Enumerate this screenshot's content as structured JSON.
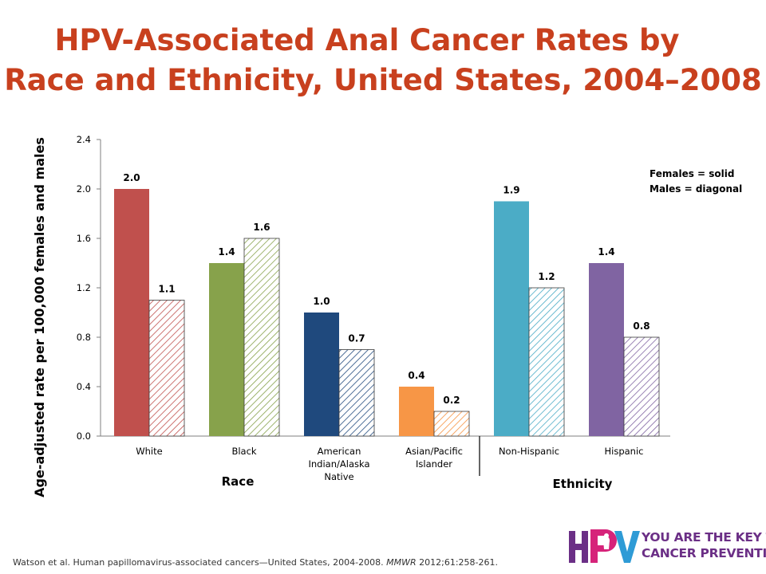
{
  "title_line1": "HPV-Associated Anal Cancer Rates by",
  "title_line2": "Race and Ethnicity, United States, 2004–2008",
  "legend": {
    "females": "Females = solid",
    "males": "Males = diagonal"
  },
  "group_labels": [
    "Race",
    "Ethnicity"
  ],
  "citation": {
    "text": "Watson et al. Human papillomavirus-associated cancers—United States, 2004-2008. ",
    "journal": "MMWR",
    "rest": " 2012;61:258-261."
  },
  "logo": {
    "letters": "HPV",
    "line1": "YOU ARE THE KEY TO",
    "line2": "CANCER PREVENTION"
  },
  "colors": {
    "title": "#c8401e",
    "logo_text": "#6b2f86"
  },
  "chart_data": {
    "type": "bar",
    "ylabel": "Age-adjusted rate per 100,000 females and males",
    "ylim": [
      0,
      2.4
    ],
    "yticks": [
      "0.0",
      "0.4",
      "0.8",
      "1.2",
      "1.6",
      "2.0",
      "2.4"
    ],
    "categories": [
      [
        "White"
      ],
      [
        "Black"
      ],
      [
        "American",
        "Indian/Alaska",
        "Native"
      ],
      [
        "Asian/Pacific",
        "Islander"
      ],
      [
        "Non-Hispanic"
      ],
      [
        "Hispanic"
      ]
    ],
    "category_group": [
      "Race",
      "Race",
      "Race",
      "Race",
      "Ethnicity",
      "Ethnicity"
    ],
    "category_colors": [
      "#c0504d",
      "#87a24b",
      "#1f497d",
      "#f79646",
      "#4bacc6",
      "#8064a2"
    ],
    "series": [
      {
        "values": [
          2.0,
          1.4,
          1.0,
          0.4,
          1.9,
          1.4
        ],
        "labels": [
          "2.0",
          "1.4",
          "1.0",
          "0.4",
          "1.9",
          "1.4"
        ],
        "style": "solid"
      },
      {
        "values": [
          1.1,
          1.6,
          0.7,
          0.2,
          1.2,
          0.8
        ],
        "labels": [
          "1.1",
          "1.6",
          "0.7",
          "0.2",
          "1.2",
          "0.8"
        ],
        "style": "diagonal"
      }
    ],
    "grid": false,
    "legend_position": "top-right"
  }
}
